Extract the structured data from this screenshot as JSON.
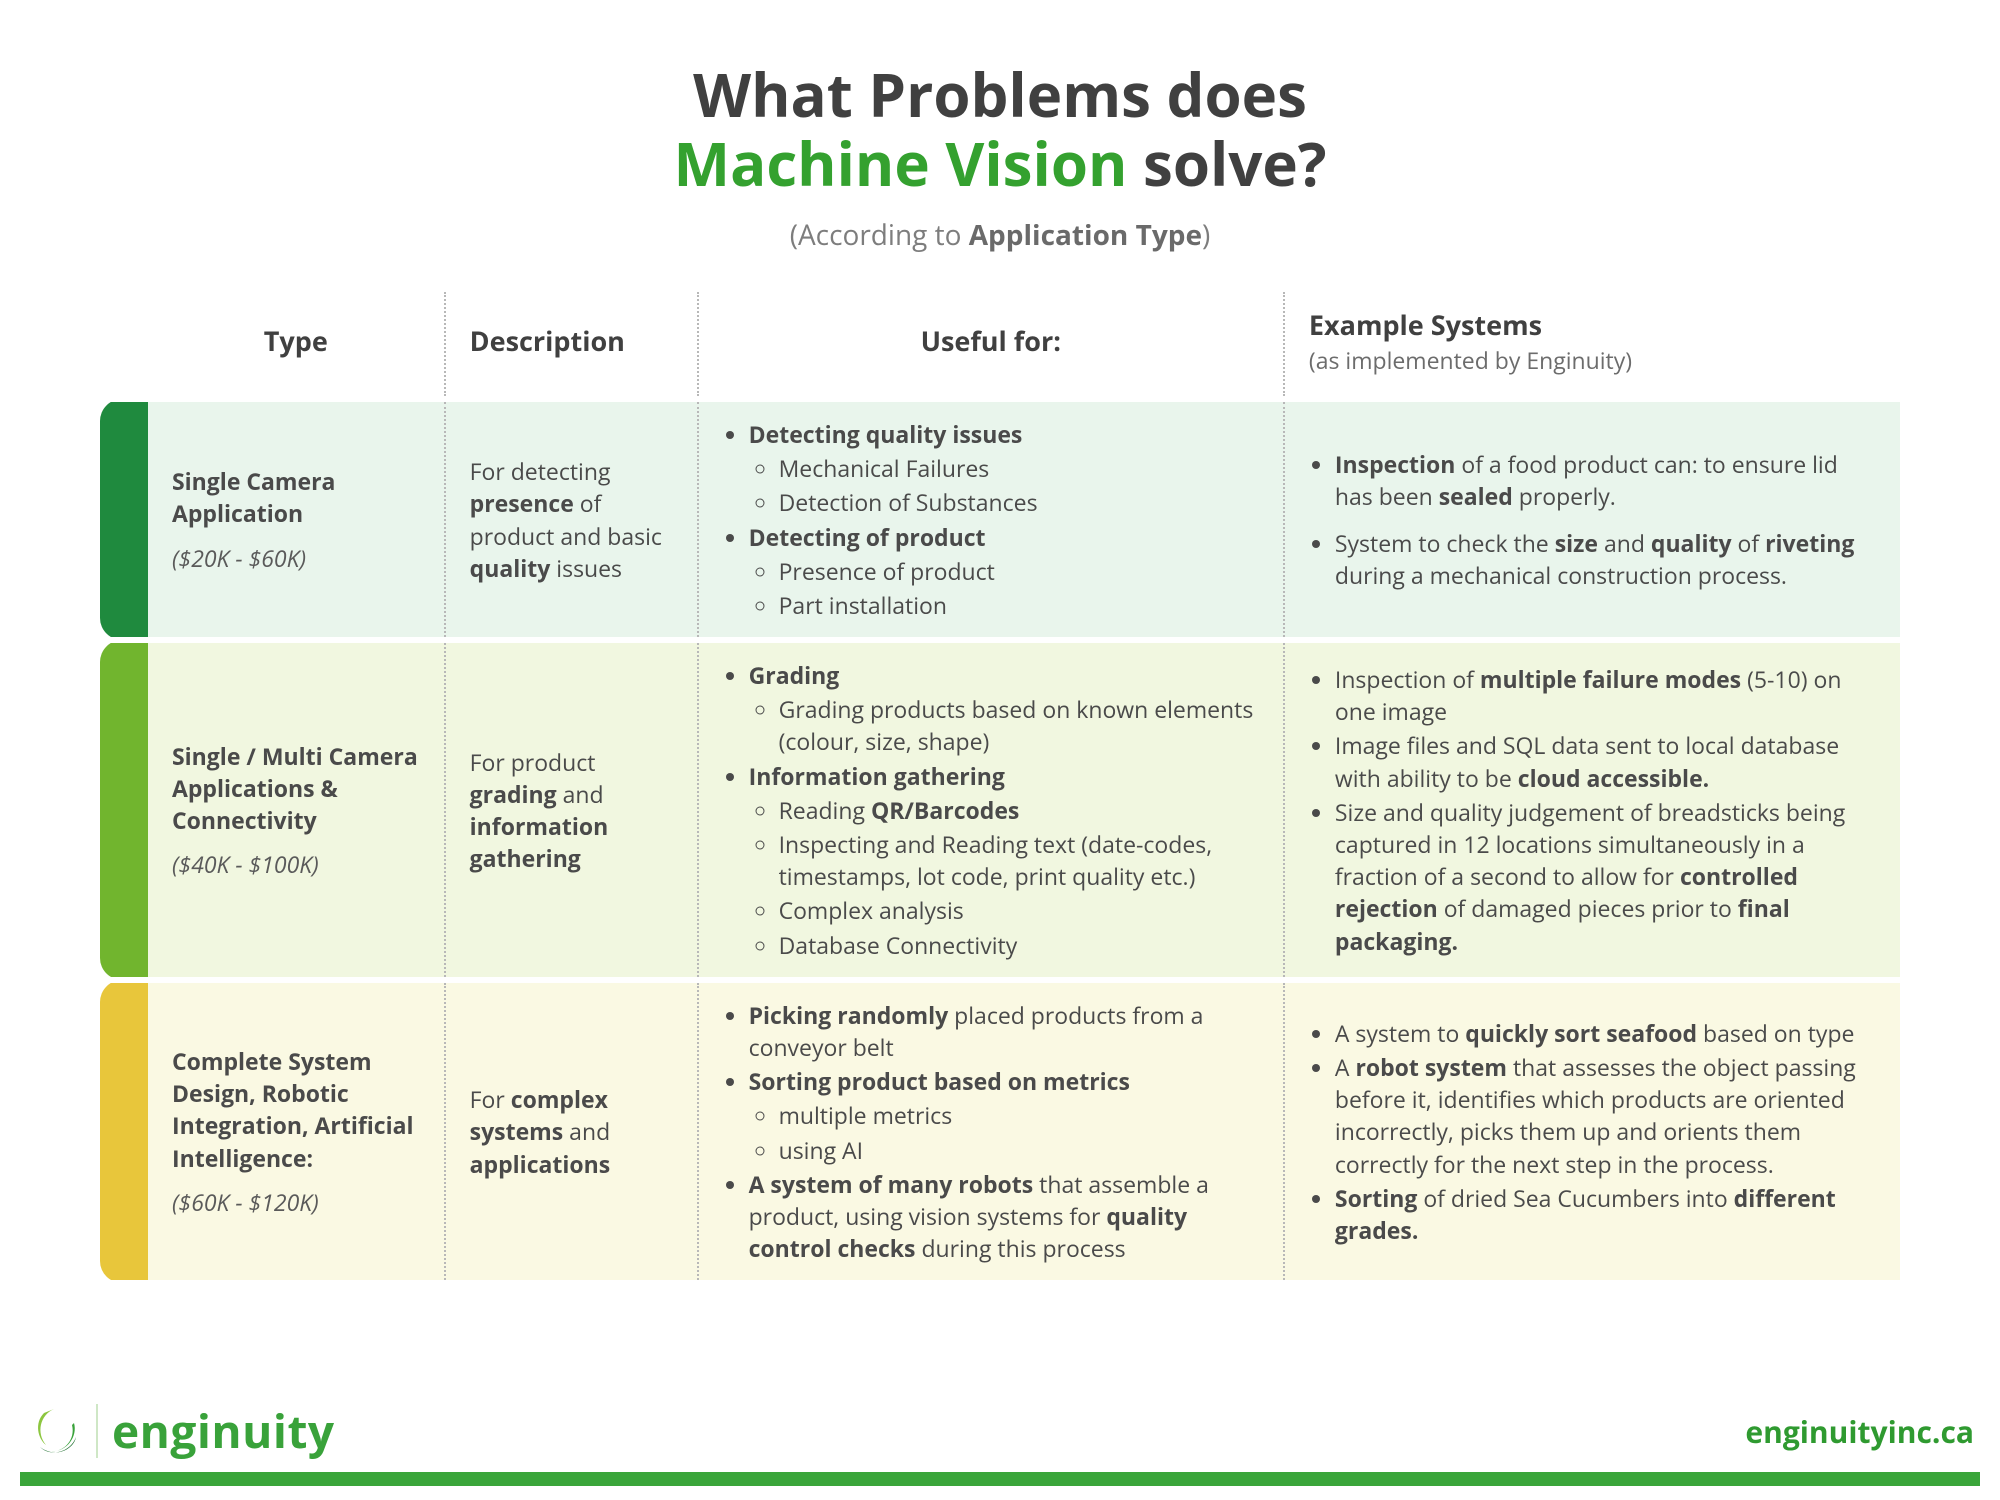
{
  "title": {
    "line1_pre": "What Problems does",
    "line2_accent": "Machine Vision",
    "line2_post": " solve?"
  },
  "subtitle_pre": "(According to ",
  "subtitle_bold": "Application Type",
  "subtitle_post": ")",
  "columns": {
    "type": "Type",
    "desc": "Description",
    "useful": "Useful for:",
    "examples": "Example Systems",
    "examples_sub": "(as implemented by Enginuity)"
  },
  "colors": {
    "stripe1": "#1f8a3e",
    "stripe2": "#71b52e",
    "stripe3": "#e8c63b",
    "row1_bg": "#e9f5ec",
    "row2_bg": "#f1f7e0",
    "row3_bg": "#faf9e3",
    "accent": "#34a12f",
    "footer_bar": "#3aa53a"
  },
  "rows": [
    {
      "name": "Single Camera Application",
      "price": "($20K - $60K)",
      "desc_html": "For detecting <b>presence</b> of product and basic <b>quality</b> issues",
      "useful_html": "<ul><li><b>Detecting quality issues</b><ul><li>Mechanical Failures</li><li>Detection of Substances</li></ul></li><li><b>Detecting of product</b><ul><li>Presence of product</li><li>Part installation</li></ul></li></ul>",
      "examples_html": "<ul><li><b>Inspection</b> of a food product can: to ensure lid has been <b>sealed</b> properly.</li><li style='margin-top:14px'>System to check the <b>size</b> and <b>quality</b> of <b>riveting</b> during a mechanical construction process.</li></ul>"
    },
    {
      "name": "Single / Multi Camera Applications & Connectivity",
      "price": "($40K - $100K)",
      "desc_html": "For product <b>grading</b> and <b>information gathering</b>",
      "useful_html": "<ul><li><b>Grading</b><ul><li>Grading products based on known elements (colour, size, shape)</li></ul></li><li><b>Information gathering</b><ul><li>Reading <b>QR/Barcodes</b></li><li>Inspecting and Reading text (date-codes, timestamps, lot code, print quality etc.)</li><li>Complex analysis</li><li>Database Connectivity</li></ul></li></ul>",
      "examples_html": "<ul><li>Inspection of <b>multiple failure modes</b> (5-10) on one image</li><li>Image files and SQL data sent to local database with ability to be <b>cloud accessible.</b></li><li>Size and quality judgement of breadsticks being captured in 12 locations simultaneously in a fraction of a second to allow for <b>controlled rejection</b> of damaged pieces prior to <b>final packaging.</b></li></ul>"
    },
    {
      "name": "Complete System Design, Robotic Integration, Artificial Intelligence:",
      "price": "($60K - $120K)",
      "desc_html": "For <b>complex systems</b> and <b>applications</b>",
      "useful_html": "<ul><li><b>Picking randomly</b> placed products from a conveyor belt</li><li><b>Sorting product based on metrics</b><ul><li>multiple metrics</li><li>using AI</li></ul></li><li><b>A system of many robots</b> that assemble a product, using vision systems for <b>quality control checks</b> during this process</li></ul>",
      "examples_html": "<ul><li>A system to <b>quickly sort seafood</b> based on type</li><li>A <b>robot system</b> that assesses the object passing before it, identifies which products are oriented incorrectly, picks them up and orients them correctly for the next step in the process.</li><li><b>Sorting</b> of dried Sea Cucumbers into <b>different grades.</b></li></ul>"
    }
  ],
  "footer": {
    "brand": "enginuity",
    "url": "enginuityinc.ca"
  }
}
